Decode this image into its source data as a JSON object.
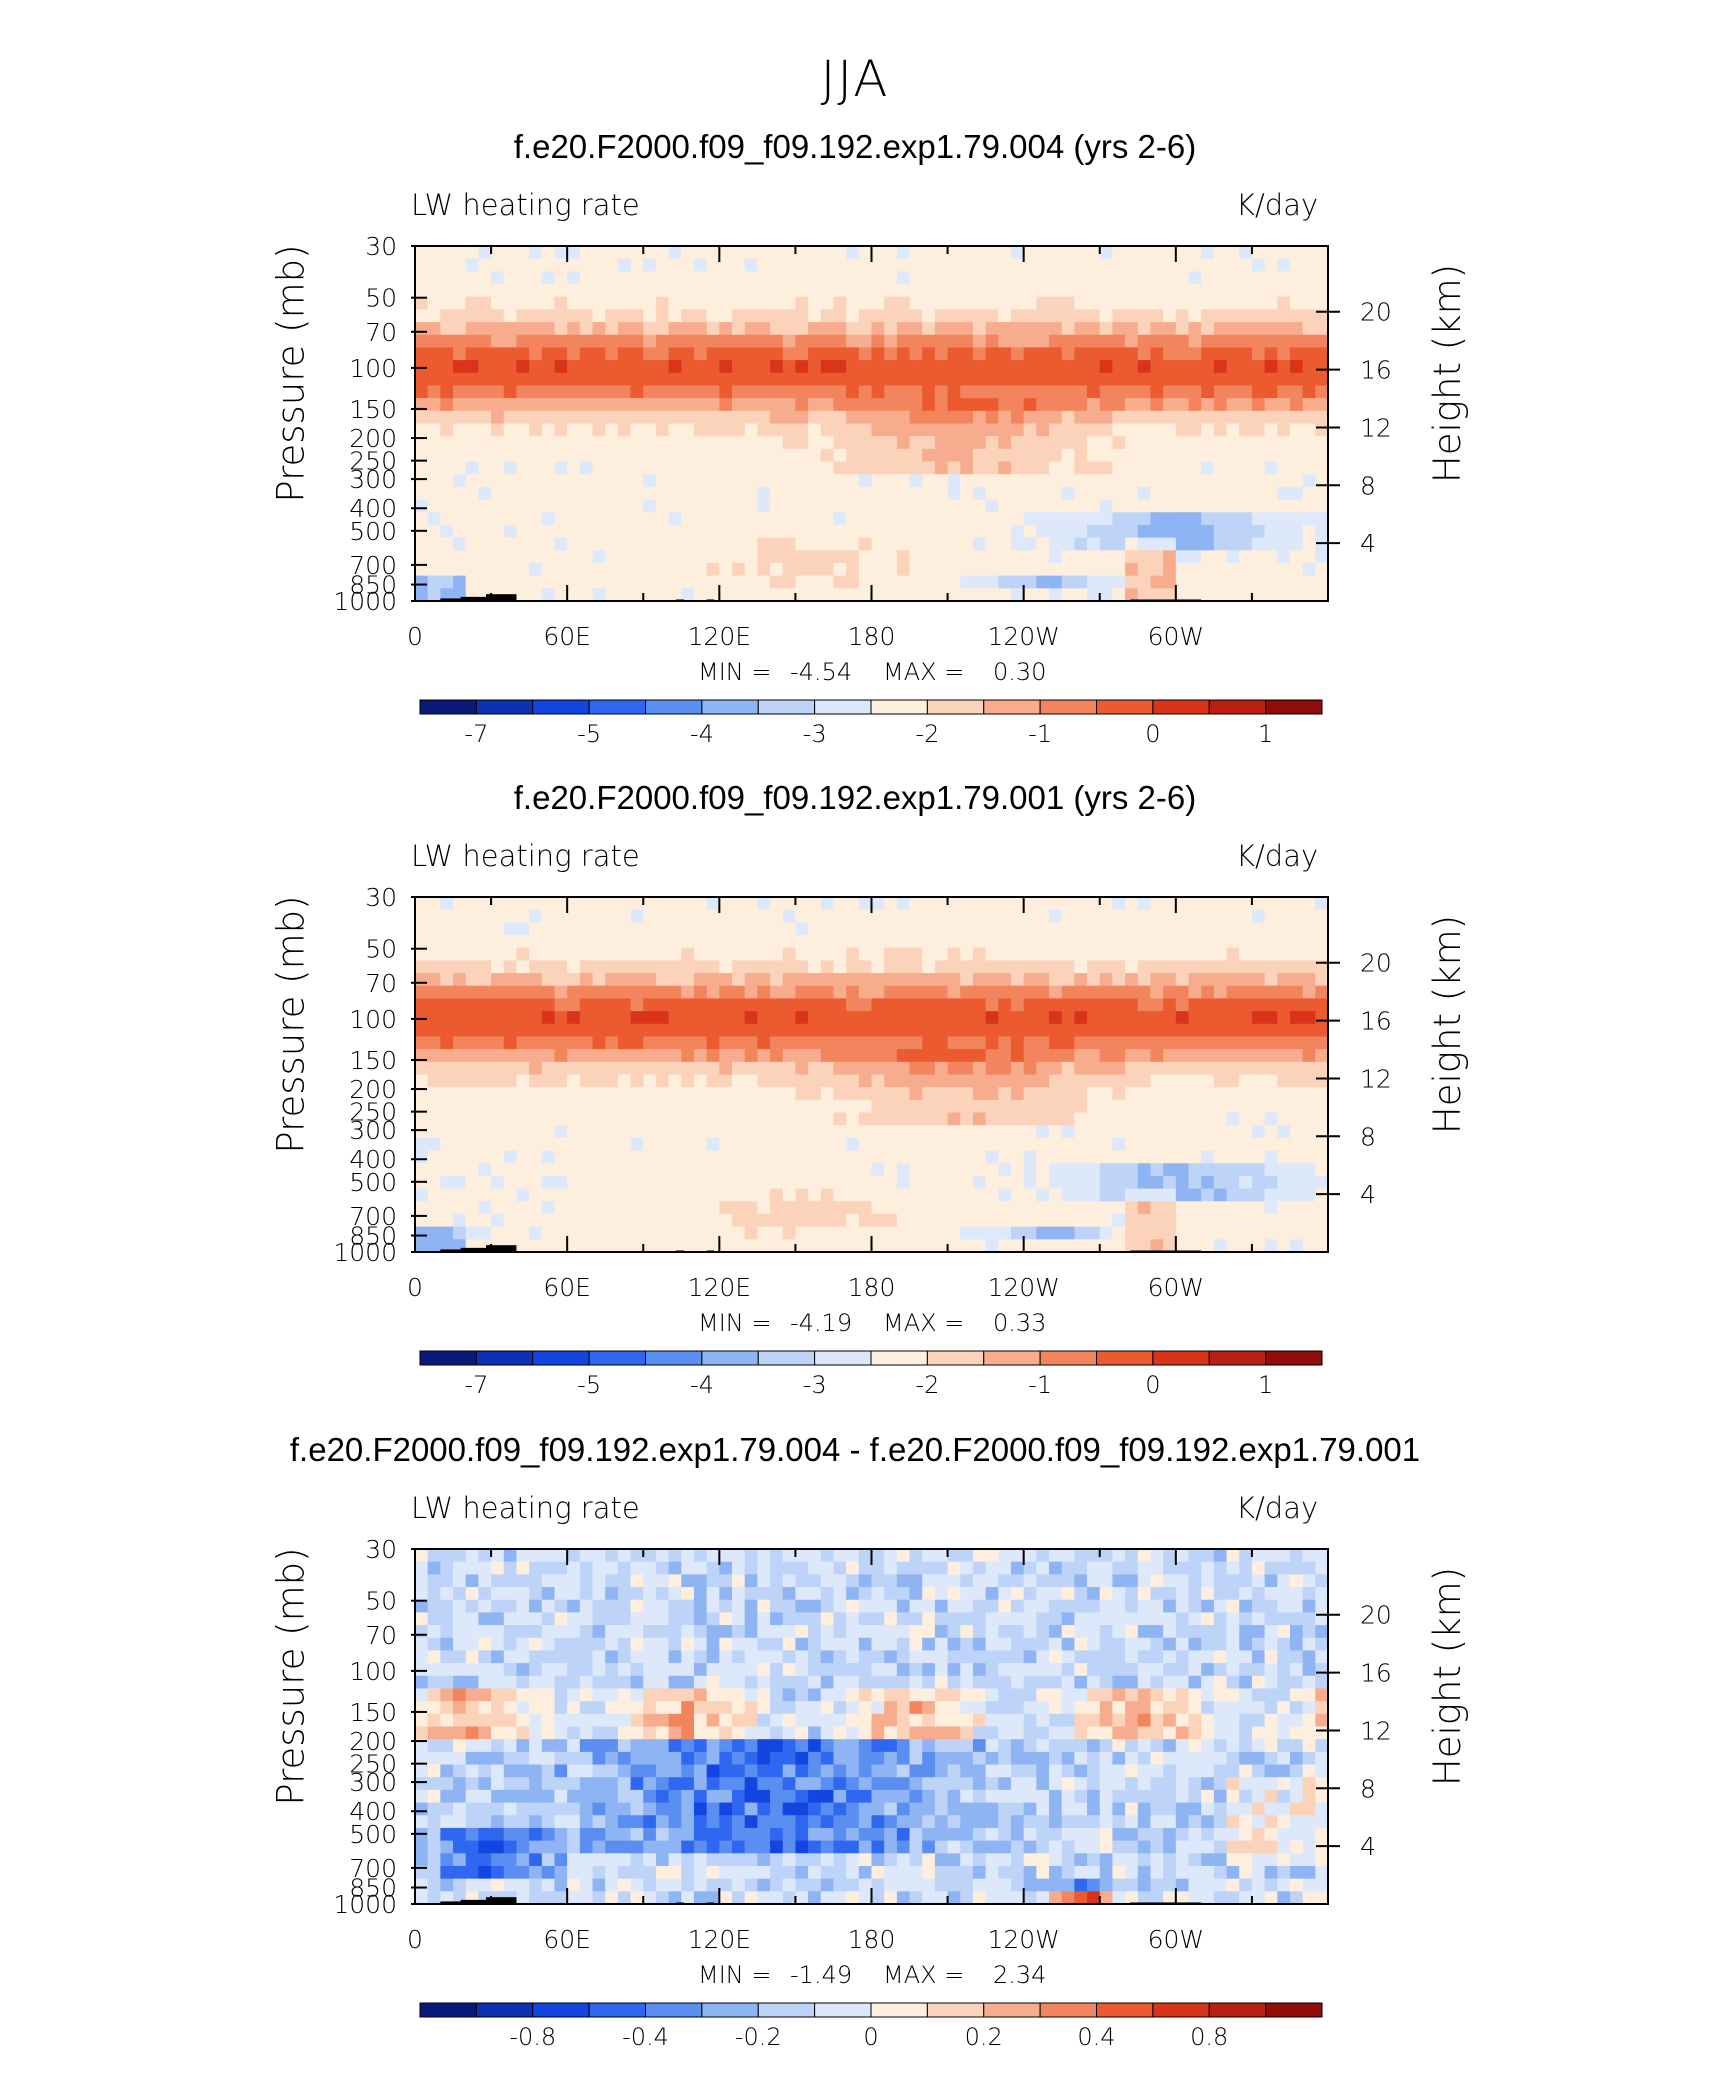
{
  "page_title": "JJA",
  "chart_data": [
    {
      "type": "heatmap",
      "title": "f.e20.F2000.f09_f09.192.exp1.79.004 (yrs 2-6)",
      "left_label": "LW heating rate",
      "right_label": "K/day",
      "xlabel": "",
      "ylabel": "Pressure (mb)",
      "ylabel_right": "Height (km)",
      "xticks": [
        {
          "lon": 0,
          "label": "0"
        },
        {
          "lon": 60,
          "label": "60E"
        },
        {
          "lon": 120,
          "label": "120E"
        },
        {
          "lon": 180,
          "label": "180"
        },
        {
          "lon": 240,
          "label": "120W"
        },
        {
          "lon": 300,
          "label": "60W"
        }
      ],
      "yticks_pressure": [
        1000,
        850,
        700,
        500,
        400,
        300,
        250,
        200,
        150,
        100,
        70,
        50,
        30
      ],
      "yticks_height_km": [
        4,
        8,
        12,
        16,
        20
      ],
      "min_label": "MIN =",
      "min_value": "-4.54",
      "max_label": "MAX =",
      "max_value": "0.30",
      "colorbar_levels": [
        "-7",
        "-5",
        "-4",
        "-3",
        "-2",
        "-1",
        "0",
        "1"
      ],
      "colorbar_colors": [
        "#0a1a7a",
        "#0b2fb0",
        "#1346e0",
        "#2f67f0",
        "#5a8ef0",
        "#8fb4f4",
        "#bdd3f8",
        "#dde9fb",
        "#fdeedd",
        "#fbd3bb",
        "#f7ad8d",
        "#f2845e",
        "#ec5a30",
        "#d9341a",
        "#b91f12",
        "#8e0d0a"
      ]
    },
    {
      "type": "heatmap",
      "title": "f.e20.F2000.f09_f09.192.exp1.79.001 (yrs 2-6)",
      "left_label": "LW heating rate",
      "right_label": "K/day",
      "xlabel": "",
      "ylabel": "Pressure (mb)",
      "ylabel_right": "Height (km)",
      "xticks": [
        {
          "lon": 0,
          "label": "0"
        },
        {
          "lon": 60,
          "label": "60E"
        },
        {
          "lon": 120,
          "label": "120E"
        },
        {
          "lon": 180,
          "label": "180"
        },
        {
          "lon": 240,
          "label": "120W"
        },
        {
          "lon": 300,
          "label": "60W"
        }
      ],
      "yticks_pressure": [
        1000,
        850,
        700,
        500,
        400,
        300,
        250,
        200,
        150,
        100,
        70,
        50,
        30
      ],
      "yticks_height_km": [
        4,
        8,
        12,
        16,
        20
      ],
      "min_label": "MIN =",
      "min_value": "-4.19",
      "max_label": "MAX =",
      "max_value": "0.33",
      "colorbar_levels": [
        "-7",
        "-5",
        "-4",
        "-3",
        "-2",
        "-1",
        "0",
        "1"
      ],
      "colorbar_colors": [
        "#0a1a7a",
        "#0b2fb0",
        "#1346e0",
        "#2f67f0",
        "#5a8ef0",
        "#8fb4f4",
        "#bdd3f8",
        "#dde9fb",
        "#fdeedd",
        "#fbd3bb",
        "#f7ad8d",
        "#f2845e",
        "#ec5a30",
        "#d9341a",
        "#b91f12",
        "#8e0d0a"
      ]
    },
    {
      "type": "heatmap",
      "title": "f.e20.F2000.f09_f09.192.exp1.79.004 - f.e20.F2000.f09_f09.192.exp1.79.001",
      "left_label": "LW heating rate",
      "right_label": "K/day",
      "xlabel": "",
      "ylabel": "Pressure (mb)",
      "ylabel_right": "Height (km)",
      "xticks": [
        {
          "lon": 0,
          "label": "0"
        },
        {
          "lon": 60,
          "label": "60E"
        },
        {
          "lon": 120,
          "label": "120E"
        },
        {
          "lon": 180,
          "label": "180"
        },
        {
          "lon": 240,
          "label": "120W"
        },
        {
          "lon": 300,
          "label": "60W"
        }
      ],
      "yticks_pressure": [
        1000,
        850,
        700,
        500,
        400,
        300,
        250,
        200,
        150,
        100,
        70,
        50,
        30
      ],
      "yticks_height_km": [
        4,
        8,
        12,
        16,
        20
      ],
      "min_label": "MIN =",
      "min_value": "-1.49",
      "max_label": "MAX =",
      "max_value": "2.34",
      "colorbar_levels": [
        "-0.8",
        "-0.4",
        "-0.2",
        "0",
        "0.2",
        "0.4",
        "0.8"
      ],
      "colorbar_colors": [
        "#0a1a7a",
        "#0b2fb0",
        "#1346e0",
        "#2f67f0",
        "#5a8ef0",
        "#8fb4f4",
        "#bdd3f8",
        "#dde9fb",
        "#fdeedd",
        "#fbd3bb",
        "#f7ad8d",
        "#f2845e",
        "#ec5a30",
        "#d9341a",
        "#b91f12",
        "#8e0d0a"
      ]
    }
  ]
}
